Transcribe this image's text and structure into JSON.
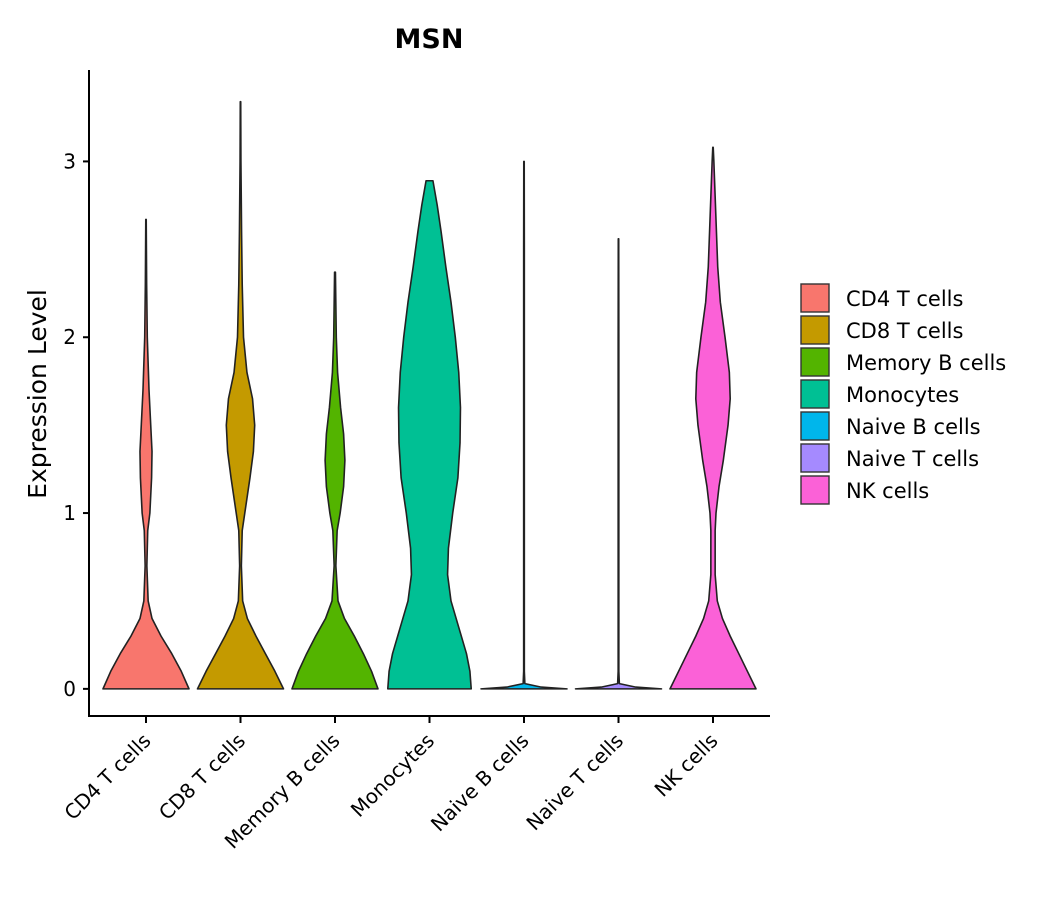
{
  "chart_data": {
    "type": "violin",
    "title": "MSN",
    "xlabel": "",
    "ylabel": "Expression Level",
    "ylim": [
      -0.16,
      3.52
    ],
    "yticks": [
      "0",
      "1",
      "2",
      "3"
    ],
    "grid": false,
    "legend_position": "right",
    "categories": [
      "CD4 T cells",
      "CD8 T cells",
      "Memory B cells",
      "Monocytes",
      "Naive B cells",
      "Naive T cells",
      "NK cells"
    ],
    "series": [
      {
        "name": "CD4 T cells",
        "color": "#F8766D",
        "max": 2.67,
        "density": [
          [
            0,
            1.0
          ],
          [
            0.1,
            0.82
          ],
          [
            0.2,
            0.6
          ],
          [
            0.3,
            0.35
          ],
          [
            0.4,
            0.14
          ],
          [
            0.5,
            0.05
          ],
          [
            0.7,
            0.02
          ],
          [
            0.9,
            0.04
          ],
          [
            1.0,
            0.09
          ],
          [
            1.2,
            0.13
          ],
          [
            1.35,
            0.14
          ],
          [
            1.5,
            0.11
          ],
          [
            1.7,
            0.07
          ],
          [
            2.0,
            0.03
          ],
          [
            2.3,
            0.015
          ],
          [
            2.67,
            0.005
          ]
        ]
      },
      {
        "name": "CD8 T cells",
        "color": "#C49A00",
        "max": 3.34,
        "density": [
          [
            0,
            1.0
          ],
          [
            0.1,
            0.8
          ],
          [
            0.2,
            0.58
          ],
          [
            0.3,
            0.36
          ],
          [
            0.4,
            0.16
          ],
          [
            0.5,
            0.05
          ],
          [
            0.7,
            0.02
          ],
          [
            0.9,
            0.04
          ],
          [
            1.0,
            0.1
          ],
          [
            1.2,
            0.22
          ],
          [
            1.35,
            0.3
          ],
          [
            1.5,
            0.33
          ],
          [
            1.65,
            0.28
          ],
          [
            1.8,
            0.15
          ],
          [
            2.0,
            0.07
          ],
          [
            2.3,
            0.04
          ],
          [
            2.6,
            0.025
          ],
          [
            3.0,
            0.01
          ],
          [
            3.34,
            0.005
          ]
        ]
      },
      {
        "name": "Memory B cells",
        "color": "#53B400",
        "max": 2.37,
        "density": [
          [
            0,
            1.0
          ],
          [
            0.1,
            0.85
          ],
          [
            0.2,
            0.66
          ],
          [
            0.3,
            0.45
          ],
          [
            0.4,
            0.22
          ],
          [
            0.5,
            0.07
          ],
          [
            0.7,
            0.02
          ],
          [
            0.9,
            0.05
          ],
          [
            1.0,
            0.12
          ],
          [
            1.15,
            0.2
          ],
          [
            1.3,
            0.23
          ],
          [
            1.45,
            0.2
          ],
          [
            1.6,
            0.13
          ],
          [
            1.8,
            0.06
          ],
          [
            2.0,
            0.03
          ],
          [
            2.37,
            0.01
          ]
        ]
      },
      {
        "name": "Monocytes",
        "color": "#00C094",
        "max": 2.89,
        "density": [
          [
            0,
            0.97
          ],
          [
            0.1,
            0.94
          ],
          [
            0.2,
            0.86
          ],
          [
            0.35,
            0.68
          ],
          [
            0.5,
            0.5
          ],
          [
            0.65,
            0.42
          ],
          [
            0.8,
            0.44
          ],
          [
            1.0,
            0.54
          ],
          [
            1.2,
            0.66
          ],
          [
            1.4,
            0.71
          ],
          [
            1.6,
            0.72
          ],
          [
            1.8,
            0.68
          ],
          [
            2.0,
            0.6
          ],
          [
            2.2,
            0.5
          ],
          [
            2.4,
            0.38
          ],
          [
            2.6,
            0.27
          ],
          [
            2.75,
            0.18
          ],
          [
            2.89,
            0.08
          ]
        ]
      },
      {
        "name": "Naive B cells",
        "color": "#00B6EB",
        "max": 3.0,
        "density": [
          [
            0,
            1.0
          ],
          [
            0.01,
            0.4
          ],
          [
            0.03,
            0.02
          ],
          [
            0.1,
            0.008
          ],
          [
            0.5,
            0.008
          ],
          [
            1.0,
            0.008
          ],
          [
            1.5,
            0.008
          ],
          [
            2.0,
            0.008
          ],
          [
            2.5,
            0.008
          ],
          [
            3.0,
            0.005
          ]
        ]
      },
      {
        "name": "Naive T cells",
        "color": "#A58AFF",
        "max": 2.56,
        "density": [
          [
            0,
            1.0
          ],
          [
            0.01,
            0.4
          ],
          [
            0.03,
            0.02
          ],
          [
            0.1,
            0.008
          ],
          [
            0.5,
            0.008
          ],
          [
            1.0,
            0.008
          ],
          [
            1.5,
            0.008
          ],
          [
            2.0,
            0.008
          ],
          [
            2.56,
            0.005
          ]
        ]
      },
      {
        "name": "NK cells",
        "color": "#FB61D7",
        "max": 3.08,
        "density": [
          [
            0,
            1.0
          ],
          [
            0.1,
            0.8
          ],
          [
            0.2,
            0.6
          ],
          [
            0.3,
            0.4
          ],
          [
            0.4,
            0.22
          ],
          [
            0.5,
            0.1
          ],
          [
            0.65,
            0.05
          ],
          [
            0.9,
            0.05
          ],
          [
            1.0,
            0.07
          ],
          [
            1.15,
            0.14
          ],
          [
            1.3,
            0.24
          ],
          [
            1.5,
            0.35
          ],
          [
            1.65,
            0.4
          ],
          [
            1.8,
            0.38
          ],
          [
            2.0,
            0.28
          ],
          [
            2.2,
            0.17
          ],
          [
            2.4,
            0.11
          ],
          [
            2.6,
            0.08
          ],
          [
            2.8,
            0.05
          ],
          [
            3.0,
            0.02
          ],
          [
            3.08,
            0.005
          ]
        ]
      }
    ]
  }
}
